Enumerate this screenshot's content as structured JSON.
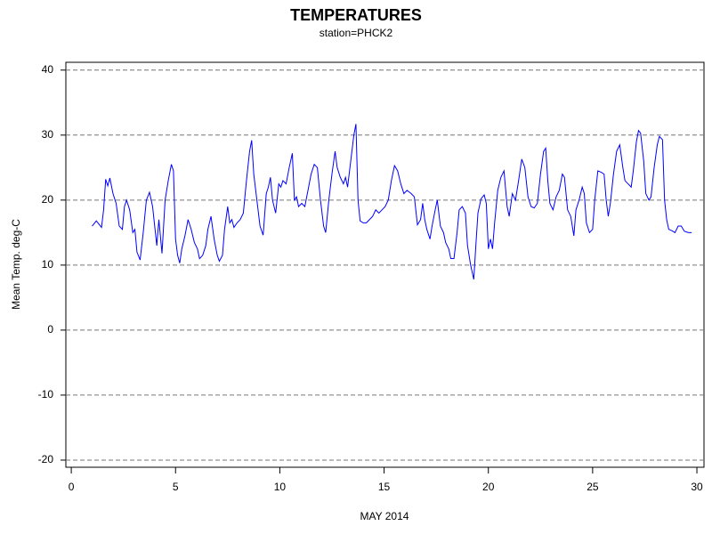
{
  "chart_data": {
    "type": "line",
    "title": "TEMPERATURES",
    "subtitle": "station=PHCK2",
    "xlabel": "MAY 2014",
    "ylabel": "Mean Temp. deg-C",
    "x": [
      1.0,
      1.2,
      1.35,
      1.45,
      1.55,
      1.65,
      1.75,
      1.85,
      2.0,
      2.15,
      2.3,
      2.45,
      2.55,
      2.65,
      2.8,
      2.95,
      3.05,
      3.15,
      3.3,
      3.45,
      3.6,
      3.75,
      3.9,
      4.0,
      4.1,
      4.2,
      4.35,
      4.5,
      4.65,
      4.8,
      4.9,
      5.0,
      5.1,
      5.2,
      5.3,
      5.45,
      5.6,
      5.75,
      5.9,
      6.05,
      6.15,
      6.3,
      6.45,
      6.55,
      6.7,
      6.85,
      7.0,
      7.1,
      7.25,
      7.35,
      7.5,
      7.6,
      7.7,
      7.8,
      7.95,
      8.1,
      8.25,
      8.4,
      8.55,
      8.65,
      8.75,
      8.9,
      9.05,
      9.2,
      9.35,
      9.45,
      9.55,
      9.65,
      9.8,
      9.95,
      10.05,
      10.15,
      10.3,
      10.45,
      10.6,
      10.7,
      10.8,
      10.9,
      11.05,
      11.2,
      11.35,
      11.5,
      11.65,
      11.8,
      11.95,
      12.1,
      12.2,
      12.35,
      12.5,
      12.65,
      12.75,
      12.9,
      13.05,
      13.15,
      13.25,
      13.4,
      13.55,
      13.65,
      13.75,
      13.85,
      14.0,
      14.15,
      14.3,
      14.45,
      14.6,
      14.75,
      14.9,
      15.05,
      15.2,
      15.35,
      15.5,
      15.65,
      15.8,
      15.95,
      16.1,
      16.3,
      16.45,
      16.6,
      16.75,
      16.85,
      16.95,
      17.05,
      17.2,
      17.3,
      17.45,
      17.55,
      17.7,
      17.85,
      17.95,
      18.1,
      18.2,
      18.35,
      18.5,
      18.6,
      18.75,
      18.9,
      19.0,
      19.15,
      19.3,
      19.4,
      19.5,
      19.65,
      19.8,
      19.9,
      20.0,
      20.1,
      20.2,
      20.3,
      20.45,
      20.6,
      20.75,
      20.9,
      21.0,
      21.15,
      21.3,
      21.45,
      21.6,
      21.75,
      21.9,
      22.05,
      22.2,
      22.35,
      22.5,
      22.65,
      22.75,
      22.85,
      22.95,
      23.1,
      23.25,
      23.4,
      23.55,
      23.65,
      23.8,
      23.95,
      24.1,
      24.2,
      24.35,
      24.5,
      24.6,
      24.7,
      24.85,
      25.0,
      25.1,
      25.25,
      25.4,
      25.55,
      25.65,
      25.75,
      25.85,
      26.0,
      26.15,
      26.3,
      26.45,
      26.55,
      26.7,
      26.85,
      26.95,
      27.1,
      27.2,
      27.3,
      27.45,
      27.55,
      27.7,
      27.8,
      27.95,
      28.1,
      28.2,
      28.35,
      28.45,
      28.55,
      28.65,
      28.8,
      28.95,
      29.1,
      29.25,
      29.4,
      29.6,
      29.75
    ],
    "series": [
      {
        "color": "#0000ff",
        "values": [
          16,
          16.8,
          16.2,
          15.8,
          18.5,
          23.2,
          22.2,
          23.4,
          21,
          19.5,
          16,
          15.5,
          19,
          20,
          18.5,
          15,
          15.5,
          12,
          10.8,
          15,
          20,
          21.2,
          19,
          16,
          13,
          17,
          11.8,
          20,
          23,
          25.5,
          24.5,
          14,
          11.5,
          10.3,
          12.5,
          14.5,
          17,
          15.5,
          13.5,
          12.5,
          11,
          11.5,
          13,
          15.5,
          17.5,
          14,
          11.5,
          10.6,
          11.5,
          15.5,
          19,
          16.5,
          17,
          15.8,
          16.5,
          17,
          18,
          23,
          27.5,
          29.2,
          24,
          20,
          16,
          14.6,
          21,
          22,
          23.5,
          20,
          18,
          22.5,
          22,
          23,
          22.5,
          25,
          27.2,
          20,
          20.5,
          19,
          19.5,
          19,
          21.5,
          24,
          25.5,
          25,
          20,
          16,
          15,
          20,
          24,
          27.5,
          25,
          23.5,
          22.5,
          23.5,
          22,
          26,
          30,
          31.7,
          20,
          16.8,
          16.5,
          16.5,
          17,
          17.5,
          18.5,
          18,
          18.5,
          19,
          20,
          23,
          25.3,
          24.5,
          22.5,
          21,
          21.5,
          21,
          20.5,
          16.2,
          17,
          19.5,
          17,
          15.5,
          14,
          16,
          18.5,
          20,
          16,
          15,
          13.5,
          12.5,
          11,
          11,
          15,
          18.5,
          19,
          18,
          13,
          10,
          7.8,
          13,
          18,
          20.2,
          20.8,
          19.5,
          12.5,
          14,
          12.5,
          16.5,
          21.5,
          23.5,
          24.5,
          19,
          17.5,
          21,
          20,
          23,
          26.3,
          25,
          20.5,
          19,
          18.8,
          19.5,
          24,
          27.5,
          28,
          23,
          19.5,
          18.5,
          20.5,
          21.5,
          24,
          23.5,
          18.5,
          17.5,
          14.5,
          18.5,
          20,
          22,
          21,
          16.5,
          15,
          15.5,
          20,
          24.5,
          24.3,
          24,
          20,
          17.5,
          19.5,
          24,
          27.5,
          28.5,
          25,
          23,
          22.5,
          22,
          24.5,
          29,
          30.7,
          30.3,
          26,
          21,
          20,
          20.5,
          25,
          28.5,
          29.8,
          29.3,
          20,
          17,
          15.5,
          15.3,
          15,
          16,
          16,
          15.2,
          15,
          15
        ]
      }
    ],
    "xlim": [
      -0.26,
      30.34
    ],
    "xticks": [
      0,
      5,
      10,
      15,
      20,
      25,
      30
    ],
    "ylim": [
      -21.1,
      41.2
    ],
    "yticks": [
      -20,
      -10,
      0,
      10,
      20,
      30,
      40
    ],
    "grid": true
  }
}
